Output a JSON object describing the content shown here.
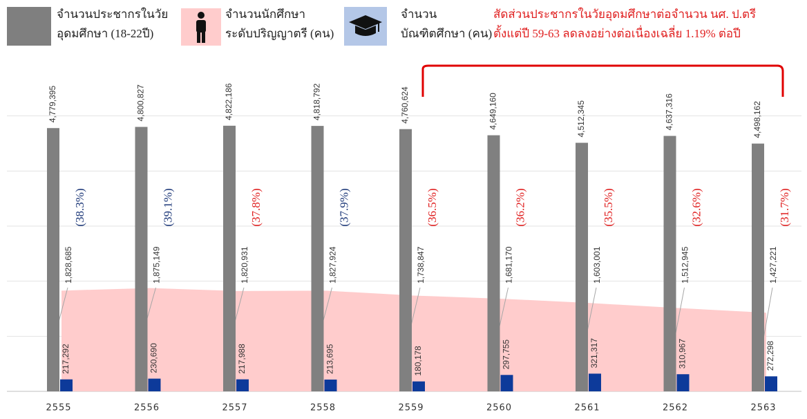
{
  "chart_data": {
    "type": "bar",
    "categories": [
      "2555",
      "2556",
      "2557",
      "2558",
      "2559",
      "2560",
      "2561",
      "2562",
      "2563"
    ],
    "series": [
      {
        "name": [
          "จำนวนประชากรในวัย",
          "อุดมศึกษา (18-22ปี)"
        ],
        "type": "bar",
        "color": "#808080",
        "values": [
          4779395,
          4800827,
          4822186,
          4818792,
          4760624,
          4649160,
          4512345,
          4637316,
          4498162
        ],
        "value_labels": [
          "4,779,395",
          "4,800,827",
          "4,822,186",
          "4,818,792",
          "4,760,624",
          "4,649,160",
          "4,512,345",
          "4,637,316",
          "4,498,162"
        ]
      },
      {
        "name": [
          "จำนวนนักศึกษา",
          "ระดับปริญญาตรี (คน)"
        ],
        "type": "area",
        "color": "#ffcccc",
        "values": [
          1828685,
          1875149,
          1820931,
          1827924,
          1738847,
          1681170,
          1603001,
          1512945,
          1427221
        ],
        "value_labels": [
          "1,828,685",
          "1,875,149",
          "1,820,931",
          "1,827,924",
          "1,738,847",
          "1,681,170",
          "1,603,001",
          "1,512,945",
          "1,427,221"
        ]
      },
      {
        "name": [
          "จำนวน",
          "บัณฑิตศึกษา (คน)"
        ],
        "type": "bar",
        "color": "#0d3a9a",
        "values": [
          217292,
          230690,
          217988,
          213695,
          180178,
          297755,
          321317,
          310967,
          272298
        ],
        "value_labels": [
          "217,292",
          "230,690",
          "217,988",
          "213,695",
          "180,178",
          "297,755",
          "321,317",
          "310,967",
          "272,298"
        ]
      }
    ],
    "ratios": {
      "values": [
        38.3,
        39.1,
        37.8,
        37.9,
        36.5,
        36.2,
        35.5,
        32.6,
        31.7
      ],
      "value_labels": [
        "(38.3%)",
        "(39.1%)",
        "(37.8%)",
        "(37.9%)",
        "(36.5%)",
        "(36.2%)",
        "(35.5%)",
        "(32.6%)",
        "(31.7%)"
      ],
      "colors": [
        "#1f3a7a",
        "#1f3a7a",
        "#e02020",
        "#1f3a7a",
        "#e02020",
        "#e02020",
        "#e02020",
        "#e02020",
        "#e02020"
      ]
    },
    "annotation": [
      "สัดส่วนประชากรในวัยอุดมศึกษาต่อจำนวน นศ. ป.ตรี",
      "ตั้งแต่ปี 59-63 ลดลงอย่างต่อเนื่องเฉลี่ย 1.19% ต่อปี"
    ],
    "ylim": [
      0,
      6000000
    ],
    "yticks": [
      0,
      1000000,
      2000000,
      3000000,
      4000000,
      5000000
    ],
    "grid": true
  }
}
